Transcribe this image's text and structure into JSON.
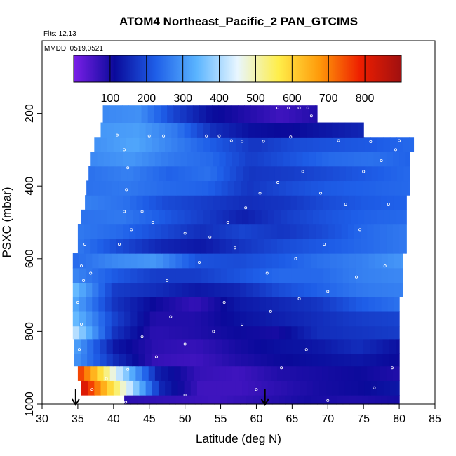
{
  "chart_data": {
    "type": "heatmap",
    "title": "ATOM4 Northeast_Pacific_2 PAN_GTCIMS",
    "flights_note": "Flts: 12,13",
    "date_note": "MMDD: 0519,0521",
    "xlabel": "Latitude (deg N)",
    "ylabel": "PSXC (mbar)",
    "xlim": [
      30,
      85
    ],
    "ylim": [
      1000,
      0
    ],
    "x_ticks": [
      "30",
      "35",
      "40",
      "45",
      "50",
      "55",
      "60",
      "65",
      "70",
      "75",
      "80",
      "85"
    ],
    "y_ticks": [
      "200",
      "400",
      "600",
      "800",
      "1000"
    ],
    "colorbar": {
      "range": [
        0,
        900
      ],
      "ticks": [
        "100",
        "200",
        "300",
        "400",
        "500",
        "600",
        "700",
        "800"
      ],
      "colors": [
        "#7b1fe8",
        "#0a0a9a",
        "#1e5ee8",
        "#5ab4ff",
        "#e8f6ff",
        "#ffee4a",
        "#ff9a0a",
        "#ee1e00",
        "#a01010"
      ]
    },
    "arrows_latitude": [
      34.7,
      61.2
    ],
    "bands": [
      {
        "p": [
          975,
          1000
        ],
        "lat": [
          41.5,
          80
        ],
        "v": [
          80,
          70,
          60,
          80,
          100,
          90,
          100
        ]
      },
      {
        "p": [
          935,
          975
        ],
        "lat": [
          35.5,
          80
        ],
        "v": [
          840,
          500,
          150,
          60,
          60,
          80,
          100,
          110,
          130
        ]
      },
      {
        "p": [
          895,
          935
        ],
        "lat": [
          35.0,
          80
        ],
        "v": [
          780,
          430,
          140,
          70,
          60,
          90,
          100,
          110,
          90
        ]
      },
      {
        "p": [
          860,
          895
        ],
        "lat": [
          34.5,
          80
        ],
        "v": [
          300,
          160,
          70,
          60,
          90,
          110,
          120,
          130,
          110
        ]
      },
      {
        "p": [
          820,
          860
        ],
        "lat": [
          34.5,
          80
        ],
        "v": [
          320,
          130,
          80,
          70,
          100,
          120,
          130,
          160,
          120
        ]
      },
      {
        "p": [
          785,
          820
        ],
        "lat": [
          34.3,
          80
        ],
        "v": [
          430,
          170,
          80,
          90,
          110,
          100,
          160,
          170,
          180
        ]
      },
      {
        "p": [
          745,
          785
        ],
        "lat": [
          34.3,
          80
        ],
        "v": [
          360,
          190,
          90,
          90,
          120,
          140,
          160,
          180,
          190
        ]
      },
      {
        "p": [
          705,
          745
        ],
        "lat": [
          34.3,
          80
        ],
        "v": [
          330,
          170,
          110,
          70,
          130,
          150,
          170,
          220,
          250
        ]
      },
      {
        "p": [
          665,
          705
        ],
        "lat": [
          34.3,
          80.5
        ],
        "v": [
          360,
          180,
          160,
          130,
          150,
          200,
          230,
          260,
          270
        ]
      },
      {
        "p": [
          625,
          665
        ],
        "lat": [
          34.3,
          80.5
        ],
        "v": [
          280,
          220,
          180,
          180,
          210,
          240,
          240,
          270,
          280
        ]
      },
      {
        "p": [
          585,
          625
        ],
        "lat": [
          34.3,
          80.5
        ],
        "v": [
          240,
          280,
          300,
          210,
          200,
          220,
          250,
          270,
          300
        ]
      },
      {
        "p": [
          545,
          585
        ],
        "lat": [
          35.0,
          81.0
        ],
        "v": [
          260,
          200,
          150,
          130,
          170,
          200,
          220,
          240,
          260
        ]
      },
      {
        "p": [
          505,
          545
        ],
        "lat": [
          35.0,
          81.0
        ],
        "v": [
          260,
          240,
          200,
          160,
          190,
          170,
          200,
          240,
          260
        ]
      },
      {
        "p": [
          465,
          505
        ],
        "lat": [
          35.5,
          81.0
        ],
        "v": [
          250,
          260,
          220,
          180,
          140,
          180,
          210,
          230,
          240
        ]
      },
      {
        "p": [
          425,
          465
        ],
        "lat": [
          36.0,
          81.0
        ],
        "v": [
          270,
          250,
          200,
          180,
          160,
          170,
          200,
          220,
          230
        ]
      },
      {
        "p": [
          385,
          425
        ],
        "lat": [
          36.2,
          81.5
        ],
        "v": [
          250,
          260,
          240,
          230,
          170,
          200,
          220,
          230,
          240
        ]
      },
      {
        "p": [
          345,
          385
        ],
        "lat": [
          36.5,
          81.5
        ],
        "v": [
          250,
          270,
          230,
          250,
          170,
          180,
          200,
          220,
          240
        ]
      },
      {
        "p": [
          305,
          345
        ],
        "lat": [
          36.8,
          81.5
        ],
        "v": [
          280,
          300,
          260,
          240,
          180,
          210,
          240,
          250,
          230
        ]
      },
      {
        "p": [
          265,
          305
        ],
        "lat": [
          37.3,
          82.0
        ],
        "v": [
          290,
          320,
          270,
          220,
          170,
          200,
          210,
          220,
          240
        ]
      },
      {
        "p": [
          225,
          265
        ],
        "lat": [
          38.2,
          75.0
        ],
        "v": [
          300,
          310,
          260,
          160,
          120,
          110,
          130,
          150
        ]
      },
      {
        "p": [
          178,
          225
        ],
        "lat": [
          38.5,
          68.5
        ],
        "v": [
          280,
          290,
          190,
          120,
          90,
          60,
          90
        ]
      }
    ],
    "sample_points": [
      {
        "lat": 36.5,
        "p": 182
      },
      {
        "lat": 37.2,
        "p": 185
      },
      {
        "lat": 63.0,
        "p": 185
      },
      {
        "lat": 64.5,
        "p": 185
      },
      {
        "lat": 66.0,
        "p": 185
      },
      {
        "lat": 67.2,
        "p": 185
      },
      {
        "lat": 67.7,
        "p": 207
      },
      {
        "lat": 69.0,
        "p": 207
      },
      {
        "lat": 70.5,
        "p": 210
      },
      {
        "lat": 72.0,
        "p": 208
      },
      {
        "lat": 40.5,
        "p": 260
      },
      {
        "lat": 45.0,
        "p": 262
      },
      {
        "lat": 47.0,
        "p": 262
      },
      {
        "lat": 53.0,
        "p": 262
      },
      {
        "lat": 54.8,
        "p": 262
      },
      {
        "lat": 56.5,
        "p": 275
      },
      {
        "lat": 58.0,
        "p": 277
      },
      {
        "lat": 61.0,
        "p": 277
      },
      {
        "lat": 64.8,
        "p": 265
      },
      {
        "lat": 71.5,
        "p": 275
      },
      {
        "lat": 76.0,
        "p": 278
      },
      {
        "lat": 80.0,
        "p": 275
      },
      {
        "lat": 41.5,
        "p": 300
      },
      {
        "lat": 42.0,
        "p": 350
      },
      {
        "lat": 41.8,
        "p": 410
      },
      {
        "lat": 41.5,
        "p": 470
      },
      {
        "lat": 42.5,
        "p": 520
      },
      {
        "lat": 40.8,
        "p": 560
      },
      {
        "lat": 36.0,
        "p": 560
      },
      {
        "lat": 35.5,
        "p": 620
      },
      {
        "lat": 36.8,
        "p": 640
      },
      {
        "lat": 35.8,
        "p": 660
      },
      {
        "lat": 44.0,
        "p": 470
      },
      {
        "lat": 45.5,
        "p": 500
      },
      {
        "lat": 50.0,
        "p": 530
      },
      {
        "lat": 53.5,
        "p": 540
      },
      {
        "lat": 56.0,
        "p": 500
      },
      {
        "lat": 58.5,
        "p": 460
      },
      {
        "lat": 60.5,
        "p": 420
      },
      {
        "lat": 63.0,
        "p": 390
      },
      {
        "lat": 66.5,
        "p": 360
      },
      {
        "lat": 69.0,
        "p": 420
      },
      {
        "lat": 72.5,
        "p": 450
      },
      {
        "lat": 75.0,
        "p": 360
      },
      {
        "lat": 77.5,
        "p": 330
      },
      {
        "lat": 79.5,
        "p": 300
      },
      {
        "lat": 78.0,
        "p": 620
      },
      {
        "lat": 74.0,
        "p": 650
      },
      {
        "lat": 70.0,
        "p": 690
      },
      {
        "lat": 66.0,
        "p": 710
      },
      {
        "lat": 62.0,
        "p": 745
      },
      {
        "lat": 58.0,
        "p": 780
      },
      {
        "lat": 54.0,
        "p": 800
      },
      {
        "lat": 50.0,
        "p": 835
      },
      {
        "lat": 46.0,
        "p": 870
      },
      {
        "lat": 42.0,
        "p": 905
      },
      {
        "lat": 39.0,
        "p": 930
      },
      {
        "lat": 37.0,
        "p": 960
      },
      {
        "lat": 41.7,
        "p": 995
      },
      {
        "lat": 50.0,
        "p": 975
      },
      {
        "lat": 60.0,
        "p": 960
      },
      {
        "lat": 70.0,
        "p": 990
      },
      {
        "lat": 76.5,
        "p": 955
      },
      {
        "lat": 79.0,
        "p": 900
      },
      {
        "lat": 35.0,
        "p": 720
      },
      {
        "lat": 35.5,
        "p": 780
      },
      {
        "lat": 35.2,
        "p": 850
      },
      {
        "lat": 47.5,
        "p": 660
      },
      {
        "lat": 52.0,
        "p": 610
      },
      {
        "lat": 57.0,
        "p": 570
      },
      {
        "lat": 61.5,
        "p": 640
      },
      {
        "lat": 65.5,
        "p": 600
      },
      {
        "lat": 69.5,
        "p": 560
      },
      {
        "lat": 74.5,
        "p": 520
      },
      {
        "lat": 78.5,
        "p": 450
      },
      {
        "lat": 55.5,
        "p": 720
      },
      {
        "lat": 48.0,
        "p": 760
      },
      {
        "lat": 44.0,
        "p": 815
      },
      {
        "lat": 63.5,
        "p": 900
      },
      {
        "lat": 67.0,
        "p": 850
      }
    ]
  }
}
